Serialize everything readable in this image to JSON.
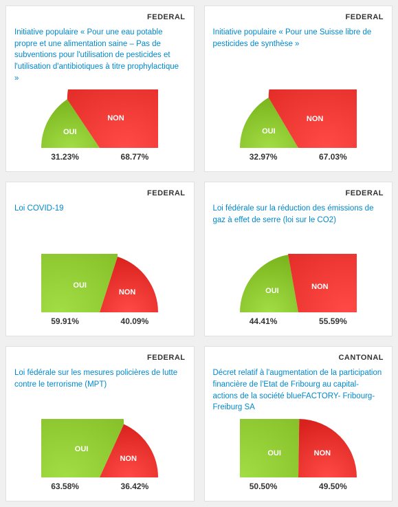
{
  "colors": {
    "yes": "#7ab51d",
    "no": "#d9221e",
    "link": "#0088cc",
    "card_bg": "#ffffff",
    "page_bg": "#f0f0f0",
    "border": "#e0e0e0",
    "text": "#333333",
    "label_text": "#ffffff"
  },
  "labels": {
    "yes": "OUI",
    "no": "NON"
  },
  "gauge": {
    "width": 170,
    "height": 85,
    "radius": 85,
    "label_fontsize": 11,
    "pct_fontsize": 12
  },
  "cards": [
    {
      "level": "FEDERAL",
      "title": "Initiative populaire « Pour une eau potable propre et une alimentation saine – Pas de subventions pour l'utilisation de pesticides et l'utilisation d'antibiotiques à titre prophylactique »",
      "yes": 31.23,
      "no": 68.77,
      "yes_display": "31.23%",
      "no_display": "68.77%"
    },
    {
      "level": "FEDERAL",
      "title": "Initiative populaire « Pour une Suisse libre de pesticides de synthèse »",
      "yes": 32.97,
      "no": 67.03,
      "yes_display": "32.97%",
      "no_display": "67.03%"
    },
    {
      "level": "FEDERAL",
      "title": "Loi COVID-19",
      "yes": 59.91,
      "no": 40.09,
      "yes_display": "59.91%",
      "no_display": "40.09%"
    },
    {
      "level": "FEDERAL",
      "title": "Loi fédérale sur la réduction des émissions de gaz à effet de serre (loi sur le CO2)",
      "yes": 44.41,
      "no": 55.59,
      "yes_display": "44.41%",
      "no_display": "55.59%"
    },
    {
      "level": "FEDERAL",
      "title": "Loi fédérale sur les mesures policières de lutte contre le terrorisme (MPT)",
      "yes": 63.58,
      "no": 36.42,
      "yes_display": "63.58%",
      "no_display": "36.42%"
    },
    {
      "level": "CANTONAL",
      "title": "Décret relatif à l'augmentation de la participation financière de l'Etat de Fribourg au capital-actions de la société blueFACTORY- Fribourg-Freiburg SA",
      "yes": 50.5,
      "no": 49.5,
      "yes_display": "50.50%",
      "no_display": "49.50%"
    }
  ]
}
